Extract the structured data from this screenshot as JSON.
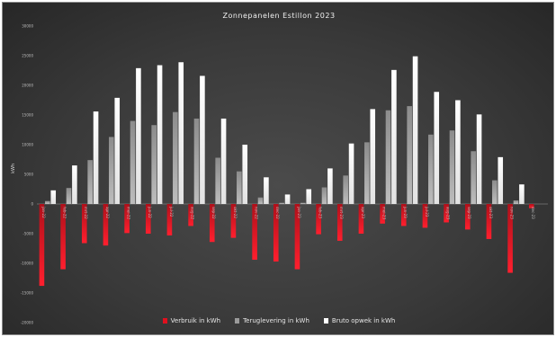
{
  "chart_data": {
    "type": "bar",
    "title": "Zonnepanelen  Estillon  2023",
    "ylabel": "kWh",
    "ylim": [
      -20000,
      30000
    ],
    "yticks": [
      -20000,
      -15000,
      -10000,
      -5000,
      0,
      5000,
      10000,
      15000,
      20000,
      25000,
      30000
    ],
    "ytick_labels": [
      "-20000",
      "-15000",
      "-10000",
      "-5000",
      "0",
      "5000",
      "10000",
      "15000",
      "20000",
      "25000",
      "30000"
    ],
    "categories": [
      "jan-22",
      "feb-22",
      "mrt-22",
      "apr-22",
      "mei-22",
      "jun-22",
      "jul-22",
      "aug-22",
      "sep-22",
      "okt-22",
      "nov-22",
      "dec-22",
      "jan-23",
      "feb-23",
      "mrt-23",
      "apr-23",
      "mei-23",
      "jun-23",
      "jul-23",
      "aug-23",
      "sep-23",
      "okt-23",
      "nov-23",
      "dec-23"
    ],
    "series": [
      {
        "name": "Verbruik in kWh",
        "color": "#e0101e",
        "values": [
          -13800,
          -11000,
          -6600,
          -7000,
          -4900,
          -5000,
          -5300,
          -3700,
          -6400,
          -5700,
          -9400,
          -9700,
          -11000,
          -5100,
          -6200,
          -5000,
          -3300,
          -3700,
          -4000,
          -3100,
          -4300,
          -5900,
          -11600,
          -700
        ]
      },
      {
        "name": "Teruglevering in kWh",
        "color": "#9a9a9a",
        "values": [
          500,
          2700,
          7400,
          11300,
          14000,
          13300,
          15500,
          14400,
          7800,
          5500,
          1100,
          200,
          200,
          2800,
          4800,
          10400,
          15800,
          16500,
          11700,
          12400,
          8900,
          4000,
          600,
          0
        ]
      },
      {
        "name": "Bruto opwek in kWh",
        "color": "#ffffff",
        "values": [
          2300,
          6500,
          15600,
          17900,
          22900,
          23400,
          23900,
          21600,
          14400,
          10000,
          4500,
          1600,
          2500,
          6000,
          10200,
          16000,
          22600,
          24900,
          18900,
          17500,
          15100,
          7900,
          3300,
          0
        ]
      }
    ],
    "grid": false,
    "legend": "bottom"
  }
}
